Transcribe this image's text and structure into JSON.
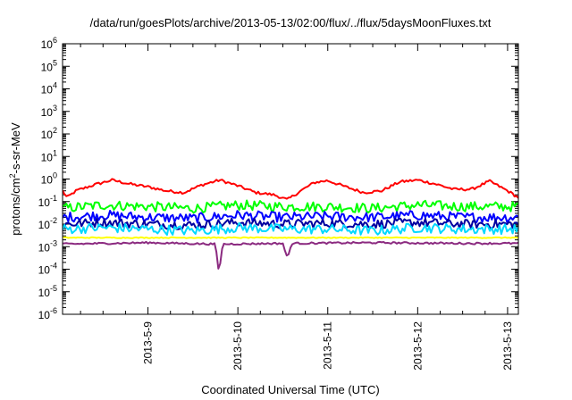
{
  "chart_data": {
    "type": "line",
    "title": "/data/run/goesPlots/archive/2013-05-13/02:00/flux/../flux/5daysMoonFluxes.txt",
    "xlabel": "Coordinated Universal Time (UTC)",
    "ylabel_parts": [
      "protons/cm",
      "2",
      "-s-sr-MeV"
    ],
    "yscale": "log",
    "ylim": [
      1e-06,
      1000000.0
    ],
    "y_ticks": [
      {
        "value": 1e-06,
        "base": "10",
        "exp": "-6"
      },
      {
        "value": 1e-05,
        "base": "10",
        "exp": "-5"
      },
      {
        "value": 0.0001,
        "base": "10",
        "exp": "-4"
      },
      {
        "value": 0.001,
        "base": "10",
        "exp": "-3"
      },
      {
        "value": 0.01,
        "base": "10",
        "exp": "-2"
      },
      {
        "value": 0.1,
        "base": "10",
        "exp": "-1"
      },
      {
        "value": 1.0,
        "base": "10",
        "exp": "0"
      },
      {
        "value": 10.0,
        "base": "10",
        "exp": "1"
      },
      {
        "value": 100.0,
        "base": "10",
        "exp": "2"
      },
      {
        "value": 1000.0,
        "base": "10",
        "exp": "3"
      },
      {
        "value": 10000.0,
        "base": "10",
        "exp": "4"
      },
      {
        "value": 100000.0,
        "base": "10",
        "exp": "5"
      },
      {
        "value": 1000000.0,
        "base": "10",
        "exp": "6"
      }
    ],
    "xlim": [
      8.05,
      13.12
    ],
    "x_ticks": [
      {
        "value": 9,
        "label": "2013-5-9"
      },
      {
        "value": 10,
        "label": "2013-5-10"
      },
      {
        "value": 11,
        "label": "2013-5-11"
      },
      {
        "value": 12,
        "label": "2013-5-12"
      },
      {
        "value": 13,
        "label": "2013-5-13"
      }
    ],
    "series": [
      {
        "color": "#ff0000",
        "values": [
          [
            8.05,
            0.3
          ],
          [
            8.1,
            0.15
          ],
          [
            8.2,
            0.3
          ],
          [
            8.4,
            0.55
          ],
          [
            8.6,
            0.9
          ],
          [
            8.8,
            0.6
          ],
          [
            9.0,
            0.45
          ],
          [
            9.2,
            0.3
          ],
          [
            9.4,
            0.25
          ],
          [
            9.6,
            0.55
          ],
          [
            9.8,
            0.9
          ],
          [
            10.0,
            0.5
          ],
          [
            10.2,
            0.25
          ],
          [
            10.4,
            0.2
          ],
          [
            10.55,
            0.12
          ],
          [
            10.7,
            0.3
          ],
          [
            10.85,
            0.7
          ],
          [
            11.0,
            0.85
          ],
          [
            11.2,
            0.45
          ],
          [
            11.4,
            0.25
          ],
          [
            11.6,
            0.3
          ],
          [
            11.8,
            0.75
          ],
          [
            12.0,
            0.9
          ],
          [
            12.2,
            0.6
          ],
          [
            12.4,
            0.35
          ],
          [
            12.6,
            0.35
          ],
          [
            12.8,
            0.8
          ],
          [
            13.0,
            0.3
          ],
          [
            13.12,
            0.15
          ]
        ]
      },
      {
        "color": "#00ff00",
        "values": [
          [
            8.05,
            0.05
          ],
          [
            8.5,
            0.07
          ],
          [
            9.0,
            0.06
          ],
          [
            9.5,
            0.05
          ],
          [
            10.0,
            0.07
          ],
          [
            10.5,
            0.06
          ],
          [
            11.0,
            0.06
          ],
          [
            11.5,
            0.05
          ],
          [
            12.0,
            0.07
          ],
          [
            12.5,
            0.06
          ],
          [
            13.12,
            0.06
          ]
        ]
      },
      {
        "color": "#0000ff",
        "values": [
          [
            8.05,
            0.02
          ],
          [
            8.5,
            0.025
          ],
          [
            9.0,
            0.02
          ],
          [
            9.5,
            0.018
          ],
          [
            10.0,
            0.025
          ],
          [
            10.5,
            0.02
          ],
          [
            11.0,
            0.022
          ],
          [
            11.5,
            0.02
          ],
          [
            12.0,
            0.025
          ],
          [
            12.5,
            0.02
          ],
          [
            13.12,
            0.02
          ]
        ]
      },
      {
        "color": "#0000a0",
        "values": [
          [
            8.05,
            0.01
          ],
          [
            8.5,
            0.012
          ],
          [
            9.0,
            0.01
          ],
          [
            9.5,
            0.009
          ],
          [
            10.0,
            0.012
          ],
          [
            10.5,
            0.01
          ],
          [
            11.0,
            0.011
          ],
          [
            11.5,
            0.01
          ],
          [
            12.0,
            0.012
          ],
          [
            12.5,
            0.01
          ],
          [
            13.12,
            0.01
          ]
        ]
      },
      {
        "color": "#00d8ff",
        "values": [
          [
            8.05,
            0.006
          ],
          [
            8.5,
            0.007
          ],
          [
            9.0,
            0.006
          ],
          [
            9.5,
            0.005
          ],
          [
            10.0,
            0.007
          ],
          [
            10.5,
            0.006
          ],
          [
            11.0,
            0.006
          ],
          [
            11.5,
            0.005
          ],
          [
            12.0,
            0.007
          ],
          [
            12.5,
            0.006
          ],
          [
            13.12,
            0.006
          ]
        ]
      },
      {
        "color": "#ffff00",
        "values": [
          [
            8.05,
            0.0025
          ],
          [
            13.12,
            0.0025
          ]
        ]
      },
      {
        "color": "#8b2a80",
        "values": [
          [
            8.05,
            0.0013
          ],
          [
            9.0,
            0.0015
          ],
          [
            9.75,
            0.0013
          ],
          [
            9.79,
            6e-05
          ],
          [
            9.83,
            0.0013
          ],
          [
            10.5,
            0.0014
          ],
          [
            10.55,
            0.0003
          ],
          [
            10.6,
            0.0014
          ],
          [
            11.5,
            0.0015
          ],
          [
            12.5,
            0.0014
          ],
          [
            13.12,
            0.0014
          ]
        ]
      }
    ],
    "grid": false,
    "legend": "none"
  }
}
